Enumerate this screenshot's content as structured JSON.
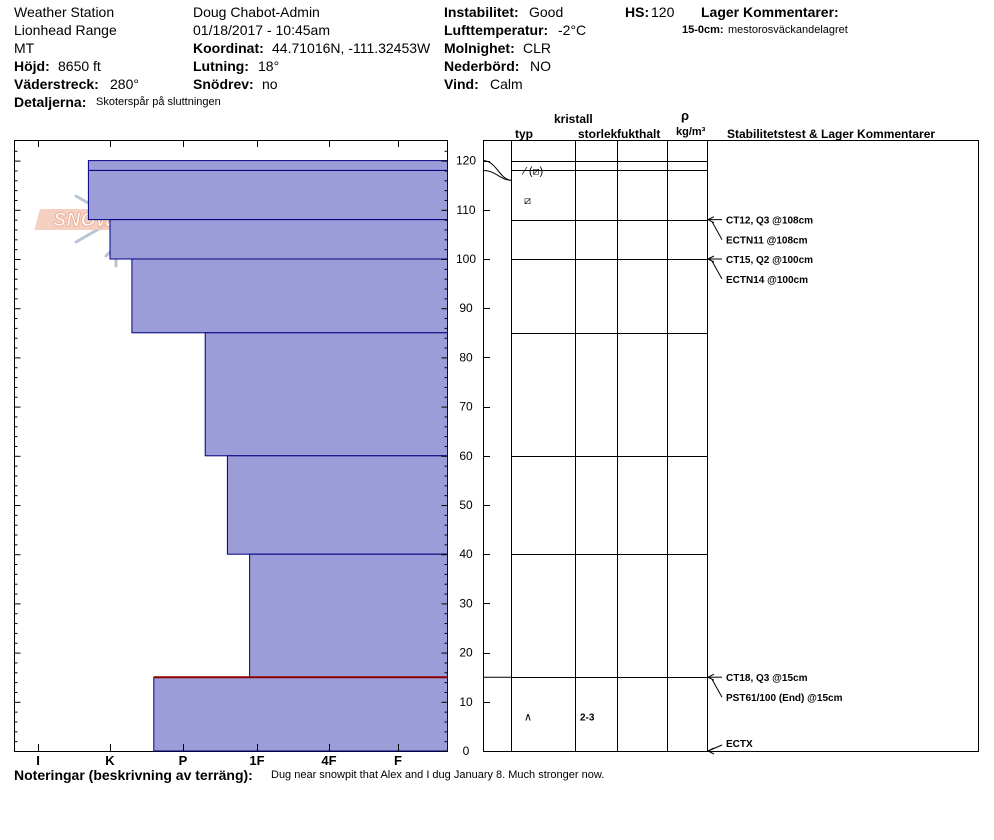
{
  "header": {
    "station": "Weather Station",
    "range": "Lionhead Range",
    "state": "MT",
    "elevation_label": "Höjd:",
    "elevation_value": "8650 ft",
    "aspect_label": "Väderstreck:",
    "aspect_value": "280°",
    "observer": "Doug Chabot-Admin",
    "datetime": "01/18/2017 - 10:45am",
    "coord_label": "Koordinat:",
    "coord_value": "44.71016N, -111.32453W",
    "slope_label": "Lutning:",
    "slope_value": "18°",
    "drift_label": "Snödrev:",
    "drift_value": "no",
    "stability_label": "Instabilitet:",
    "stability_value": "Good",
    "airtemp_label": "Lufttemperatur:",
    "airtemp_value": "-2°C",
    "sky_label": "Molnighet:",
    "sky_value": "CLR",
    "precip_label": "Nederbörd:",
    "precip_value": "NO",
    "wind_label": "Vind:",
    "wind_value": "Calm",
    "hs_label": "HS:",
    "hs_value": "120",
    "layer_comments_title": "Lager Kommentarer:",
    "layer_comment_depth": "15-0cm:",
    "layer_comment_text": "mestorosväckandelagret",
    "details_label": "Detaljerna:",
    "details_value": "Skoterspår på sluttningen"
  },
  "logo": {
    "text": "SNOW PILOT"
  },
  "columns": {
    "typ": "typ",
    "kristall": "kristall",
    "storlek": "storlek",
    "fukthalt": "fukthalt",
    "rho": "ρ",
    "density_unit": "kg/m³",
    "tests": "Stabilitetstest & Lager Kommentarer"
  },
  "crystals": [
    {
      "depth": 118,
      "symbol": "⁄ (⧄)",
      "size": ""
    },
    {
      "depth": 112,
      "symbol": "⧄",
      "size": ""
    },
    {
      "depth": 7,
      "symbol": "∧",
      "size": "2-3"
    }
  ],
  "tests": [
    {
      "depth": 108,
      "line1": "CT12, Q3 @108cm",
      "line2": "ECTN11 @108cm"
    },
    {
      "depth": 100,
      "line1": "CT15, Q2 @100cm",
      "line2": "ECTN14 @100cm"
    },
    {
      "depth": 15,
      "line1": "CT18, Q3 @15cm",
      "line2": "PST61/100 (End) @15cm"
    },
    {
      "depth": 0,
      "line1": "ECTX",
      "line2": ""
    }
  ],
  "notes": {
    "label": "Noteringar (beskrivning av terräng):",
    "text": "Dug near snowpit that Alex and I dug January 8. Much stronger now."
  },
  "chart_data": {
    "type": "bar",
    "orientation": "horizontal",
    "ylabel": "",
    "ylim": [
      0,
      125
    ],
    "yticks": [
      0,
      10,
      20,
      30,
      40,
      50,
      60,
      70,
      80,
      90,
      100,
      110,
      120
    ],
    "hardness_scale": [
      "I",
      "K",
      "P",
      "1F",
      "4F",
      "F"
    ],
    "layer_boundaries": [
      120,
      118,
      108,
      100,
      85,
      60,
      40,
      15
    ],
    "critical_layer_depth": 15,
    "layers": [
      {
        "top": 120,
        "bottom": 118,
        "hardness": 0.7
      },
      {
        "top": 118,
        "bottom": 108,
        "hardness": 0.7
      },
      {
        "top": 108,
        "bottom": 100,
        "hardness": 1.0
      },
      {
        "top": 100,
        "bottom": 85,
        "hardness": 1.3
      },
      {
        "top": 85,
        "bottom": 60,
        "hardness": 2.3
      },
      {
        "top": 60,
        "bottom": 40,
        "hardness": 2.6
      },
      {
        "top": 40,
        "bottom": 15,
        "hardness": 2.9
      },
      {
        "top": 15,
        "bottom": 0,
        "hardness": 1.6
      }
    ]
  }
}
